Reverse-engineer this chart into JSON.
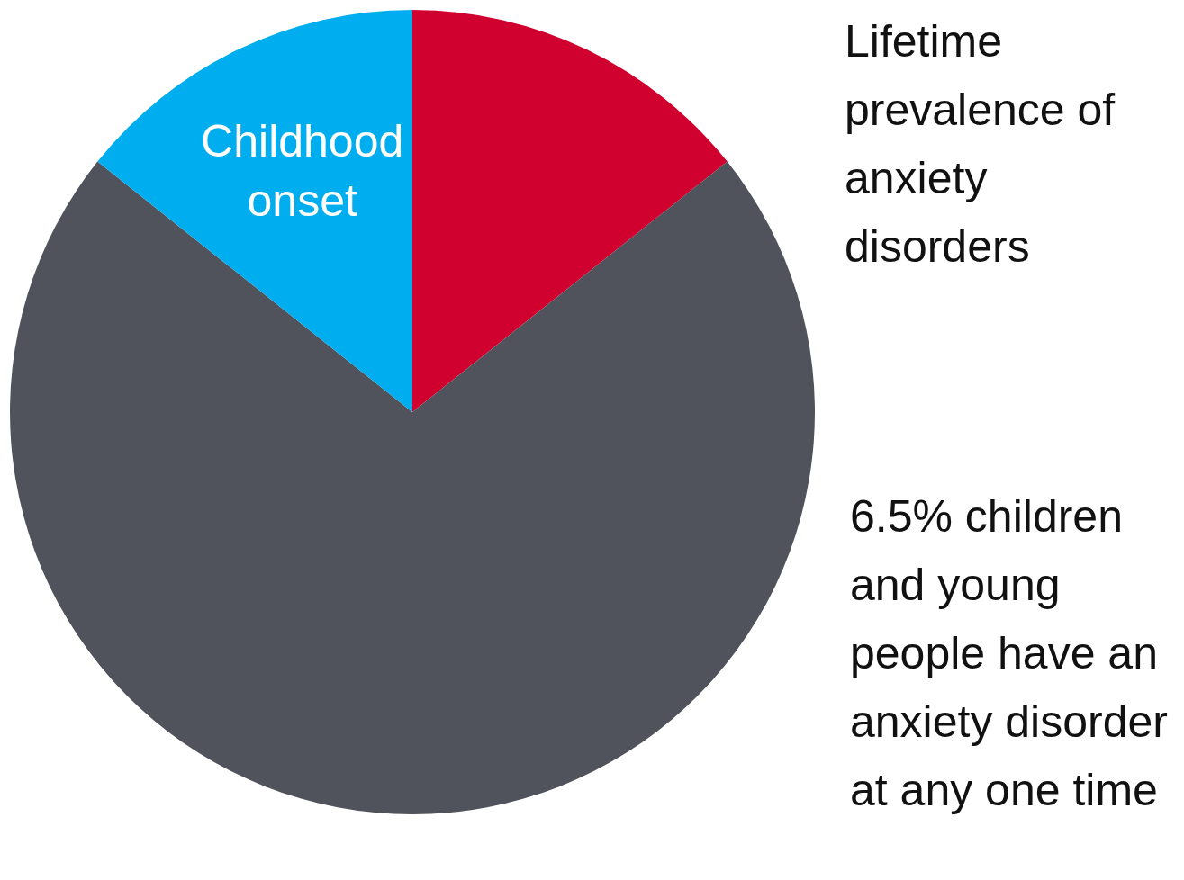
{
  "chart_data": {
    "type": "pie",
    "title": "Lifetime prevalence of anxiety disorders",
    "categories": [
      null,
      null,
      "Childhood onset"
    ],
    "values": [
      14.3,
      71.4,
      14.3
    ],
    "colors": [
      "#d0002f",
      "#50535b",
      "#00aeef"
    ],
    "annotations": [
      "6.5% children and young people have an anxiety disorder at any one time"
    ],
    "legend": false
  }
}
